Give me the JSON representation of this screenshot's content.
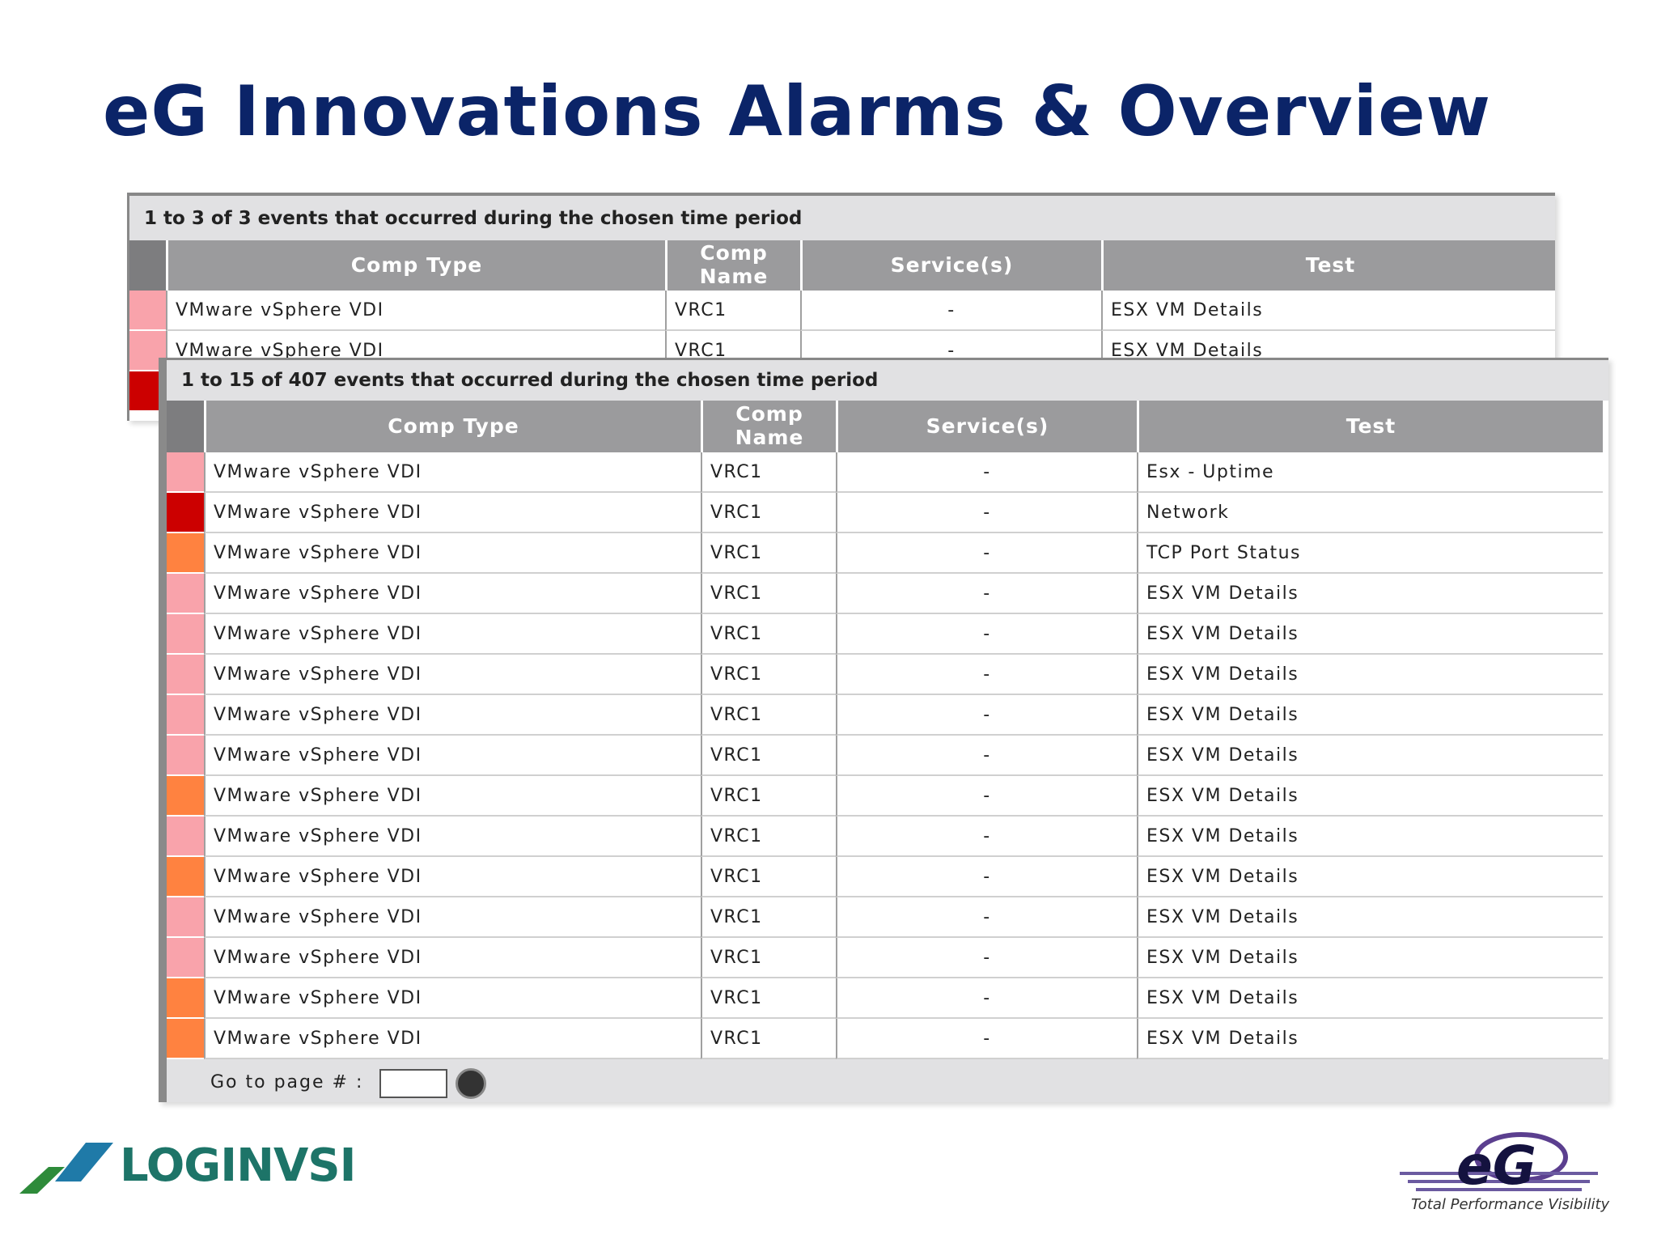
{
  "title": "eG Innovations Alarms & Overview",
  "back_table": {
    "summary": "1 to 3 of 3 events that occurred during the chosen time period",
    "columns": [
      "Comp Type",
      "Comp Name",
      "Service(s)",
      "Test"
    ],
    "rows": [
      {
        "severity": "#f9a3ab",
        "cells": [
          "VMware vSphere VDI",
          "VRC1",
          "-",
          "ESX VM Details"
        ]
      },
      {
        "severity": "#f9a3ab",
        "cells": [
          "VMware vSphere VDI",
          "VRC1",
          "-",
          "ESX VM Details"
        ]
      },
      {
        "severity": "#cc0000",
        "cells": []
      }
    ]
  },
  "front_table": {
    "summary": "1 to 15 of 407 events that occurred during the chosen time period",
    "columns": [
      "Comp Type",
      "Comp Name",
      "Service(s)",
      "Test"
    ],
    "rows": [
      {
        "severity": "#f9a3ab",
        "cells": [
          "VMware vSphere VDI",
          "VRC1",
          "-",
          "Esx - Uptime"
        ]
      },
      {
        "severity": "#cc0000",
        "cells": [
          "VMware vSphere VDI",
          "VRC1",
          "-",
          "Network"
        ]
      },
      {
        "severity": "#ff8240",
        "cells": [
          "VMware vSphere VDI",
          "VRC1",
          "-",
          "TCP Port Status"
        ]
      },
      {
        "severity": "#f9a3ab",
        "cells": [
          "VMware vSphere VDI",
          "VRC1",
          "-",
          "ESX VM Details"
        ]
      },
      {
        "severity": "#f9a3ab",
        "cells": [
          "VMware vSphere VDI",
          "VRC1",
          "-",
          "ESX VM Details"
        ]
      },
      {
        "severity": "#f9a3ab",
        "cells": [
          "VMware vSphere VDI",
          "VRC1",
          "-",
          "ESX VM Details"
        ]
      },
      {
        "severity": "#f9a3ab",
        "cells": [
          "VMware vSphere VDI",
          "VRC1",
          "-",
          "ESX VM Details"
        ]
      },
      {
        "severity": "#f9a3ab",
        "cells": [
          "VMware vSphere VDI",
          "VRC1",
          "-",
          "ESX VM Details"
        ]
      },
      {
        "severity": "#ff8240",
        "cells": [
          "VMware vSphere VDI",
          "VRC1",
          "-",
          "ESX VM Details"
        ]
      },
      {
        "severity": "#f9a3ab",
        "cells": [
          "VMware vSphere VDI",
          "VRC1",
          "-",
          "ESX VM Details"
        ]
      },
      {
        "severity": "#ff8240",
        "cells": [
          "VMware vSphere VDI",
          "VRC1",
          "-",
          "ESX VM Details"
        ]
      },
      {
        "severity": "#f9a3ab",
        "cells": [
          "VMware vSphere VDI",
          "VRC1",
          "-",
          "ESX VM Details"
        ]
      },
      {
        "severity": "#f9a3ab",
        "cells": [
          "VMware vSphere VDI",
          "VRC1",
          "-",
          "ESX VM Details"
        ]
      },
      {
        "severity": "#ff8240",
        "cells": [
          "VMware vSphere VDI",
          "VRC1",
          "-",
          "ESX VM Details"
        ]
      },
      {
        "severity": "#ff8240",
        "cells": [
          "VMware vSphere VDI",
          "VRC1",
          "-",
          "ESX VM Details"
        ]
      }
    ],
    "footer": "Go to page # :"
  },
  "logos": {
    "left": "LOGINVSI",
    "right": "eG",
    "right_tagline": "Total Performance Visibility"
  }
}
